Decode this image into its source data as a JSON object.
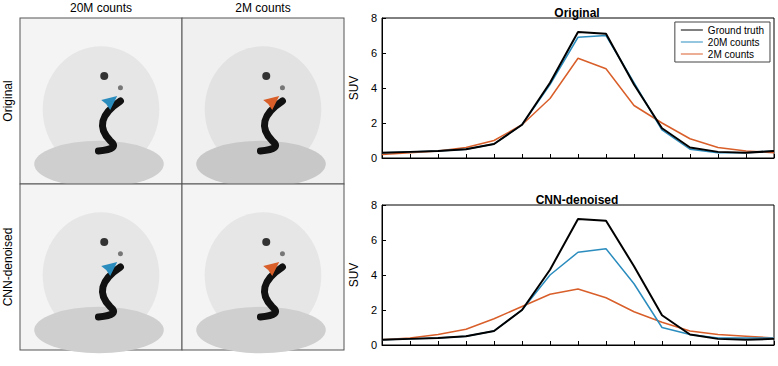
{
  "image_panels": {
    "column_labels": [
      "20M counts",
      "2M counts"
    ],
    "row_labels": [
      "Original",
      "CNN-denoised"
    ]
  },
  "chart_data": [
    {
      "type": "line",
      "title": "Original",
      "y_label": "SUV",
      "x": [
        0,
        1,
        2,
        3,
        4,
        5,
        6,
        7,
        8,
        9,
        10,
        11,
        12,
        13,
        14
      ],
      "xlim": [
        0,
        14
      ],
      "xticks": [
        0,
        1,
        2,
        3,
        4,
        5,
        6,
        7,
        8,
        9,
        10,
        11,
        12,
        13,
        14
      ],
      "ylim": [
        0,
        8
      ],
      "yticks": [
        0,
        2,
        4,
        6,
        8
      ],
      "tick_labels": "y",
      "legend": "upper right",
      "series": [
        {
          "name": "Ground truth",
          "color": "#000000",
          "values": [
            0.3,
            0.35,
            0.4,
            0.5,
            0.8,
            1.9,
            4.3,
            7.2,
            7.1,
            4.2,
            1.7,
            0.6,
            0.35,
            0.3,
            0.4
          ]
        },
        {
          "name": "20M counts",
          "color": "#2b8cbe",
          "values": [
            0.3,
            0.35,
            0.4,
            0.5,
            0.8,
            1.9,
            4.2,
            6.9,
            7.0,
            4.3,
            1.6,
            0.5,
            0.3,
            0.3,
            0.4
          ]
        },
        {
          "name": "2M counts",
          "color": "#d95f2a",
          "values": [
            0.2,
            0.3,
            0.4,
            0.6,
            1.0,
            1.9,
            3.4,
            5.7,
            5.1,
            3.0,
            2.0,
            1.1,
            0.6,
            0.4,
            0.3
          ]
        }
      ]
    },
    {
      "type": "line",
      "title": "CNN-denoised",
      "y_label": "SUV",
      "x": [
        0,
        1,
        2,
        3,
        4,
        5,
        6,
        7,
        8,
        9,
        10,
        11,
        12,
        13,
        14
      ],
      "xlim": [
        0,
        14
      ],
      "xticks": [
        0,
        1,
        2,
        3,
        4,
        5,
        6,
        7,
        8,
        9,
        10,
        11,
        12,
        13,
        14
      ],
      "ylim": [
        0,
        8
      ],
      "yticks": [
        0,
        2,
        4,
        6,
        8
      ],
      "tick_labels": "y",
      "series": [
        {
          "name": "Ground truth",
          "color": "#000000",
          "values": [
            0.3,
            0.35,
            0.4,
            0.5,
            0.8,
            2.0,
            4.3,
            7.2,
            7.1,
            4.5,
            1.7,
            0.6,
            0.35,
            0.3,
            0.35
          ]
        },
        {
          "name": "20M counts",
          "color": "#2b8cbe",
          "values": [
            0.3,
            0.35,
            0.4,
            0.5,
            0.8,
            2.0,
            4.0,
            5.3,
            5.5,
            3.5,
            1.0,
            0.6,
            0.4,
            0.4,
            0.4
          ]
        },
        {
          "name": "2M counts",
          "color": "#d95f2a",
          "values": [
            0.3,
            0.4,
            0.6,
            0.9,
            1.5,
            2.2,
            2.9,
            3.2,
            2.7,
            1.9,
            1.3,
            0.8,
            0.6,
            0.5,
            0.4
          ]
        }
      ]
    }
  ]
}
